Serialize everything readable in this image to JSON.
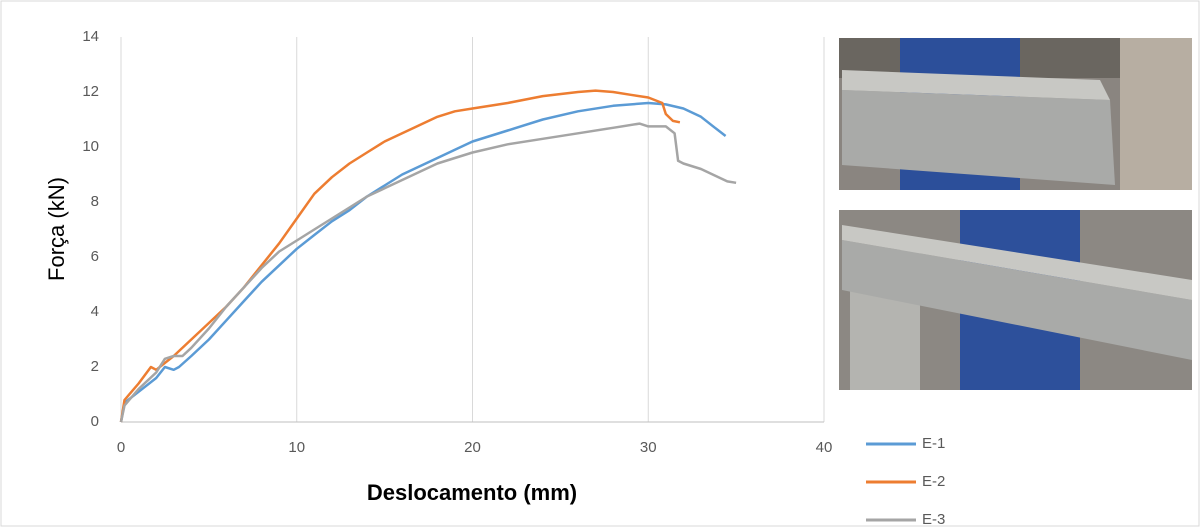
{
  "chart_data": {
    "type": "line",
    "x_label": "Deslocamento (mm)",
    "y_label": "Força (kN)",
    "xlim": [
      0,
      40
    ],
    "xticks": [
      0,
      10,
      20,
      30,
      40
    ],
    "ylim": [
      0,
      14
    ],
    "yticks": [
      0,
      2,
      4,
      6,
      8,
      10,
      12,
      14
    ],
    "grid": "x",
    "legend": "right",
    "series": [
      {
        "name": "E-1",
        "color": "#5b9bd5",
        "x": [
          0,
          0.2,
          1,
          2,
          2.5,
          3,
          3.3,
          4,
          5,
          6,
          7,
          8,
          9,
          10,
          11,
          12,
          13,
          14,
          15,
          16,
          17,
          18,
          19,
          20,
          22,
          24,
          26,
          28,
          30,
          31,
          32,
          33,
          33.8,
          34.4
        ],
        "values": [
          0,
          0.7,
          1.1,
          1.6,
          2.0,
          1.9,
          2.0,
          2.4,
          3.0,
          3.7,
          4.4,
          5.1,
          5.7,
          6.3,
          6.8,
          7.3,
          7.7,
          8.2,
          8.6,
          9.0,
          9.3,
          9.6,
          9.9,
          10.2,
          10.6,
          11.0,
          11.3,
          11.5,
          11.6,
          11.55,
          11.4,
          11.1,
          10.7,
          10.4
        ]
      },
      {
        "name": "E-2",
        "color": "#ed7d31",
        "x": [
          0,
          0.2,
          1,
          1.7,
          2,
          3,
          4,
          5,
          6,
          7,
          8,
          9,
          10,
          11,
          12,
          13,
          14,
          15,
          16,
          17,
          18,
          19,
          20,
          22,
          24,
          26,
          27,
          28,
          29,
          30,
          30.8,
          31,
          31.4,
          31.8
        ],
        "values": [
          0,
          0.8,
          1.4,
          2.0,
          1.9,
          2.4,
          3.0,
          3.6,
          4.2,
          4.9,
          5.7,
          6.5,
          7.4,
          8.3,
          8.9,
          9.4,
          9.8,
          10.2,
          10.5,
          10.8,
          11.1,
          11.3,
          11.4,
          11.6,
          11.85,
          12.0,
          12.05,
          12.0,
          11.9,
          11.8,
          11.6,
          11.2,
          10.95,
          10.9
        ]
      },
      {
        "name": "E-3",
        "color": "#a5a5a5",
        "x": [
          0,
          0.2,
          1,
          2,
          2.5,
          3,
          3.5,
          4,
          5,
          6,
          7,
          8,
          9,
          10,
          11,
          12,
          13,
          14,
          15,
          16,
          17,
          18,
          19,
          20,
          22,
          24,
          26,
          28,
          29.5,
          30,
          31,
          31.5,
          31.7,
          32,
          33,
          34,
          34.5,
          35
        ],
        "values": [
          0,
          0.6,
          1.2,
          1.8,
          2.3,
          2.4,
          2.4,
          2.7,
          3.4,
          4.2,
          4.9,
          5.6,
          6.2,
          6.6,
          7.0,
          7.4,
          7.8,
          8.2,
          8.5,
          8.8,
          9.1,
          9.4,
          9.6,
          9.8,
          10.1,
          10.3,
          10.5,
          10.7,
          10.85,
          10.75,
          10.75,
          10.5,
          9.5,
          9.4,
          9.2,
          8.9,
          8.75,
          8.7
        ]
      }
    ]
  }
}
